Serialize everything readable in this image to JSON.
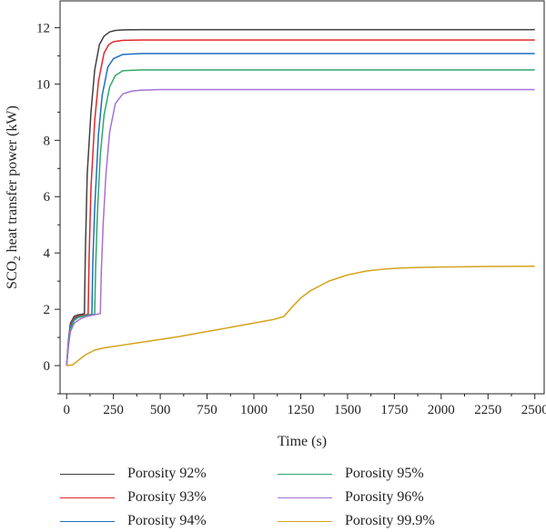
{
  "chart_data": {
    "type": "line",
    "xlabel": "Time (s)",
    "ylabel": {
      "prefix": "SCO",
      "sub": "2",
      "suffix": " heat transfer power (kW)"
    },
    "xlim": [
      -35,
      2550
    ],
    "ylim": [
      -1.0,
      12.95
    ],
    "x_ticks": [
      0,
      250,
      500,
      750,
      1000,
      1250,
      1500,
      1750,
      2000,
      2250,
      2500
    ],
    "x_tick_labels": [
      "0",
      "250",
      "500",
      "750",
      "1000",
      "1250",
      "1500",
      "1750",
      "2000",
      "2250",
      "2500"
    ],
    "y_ticks": [
      0,
      2,
      4,
      6,
      8,
      10,
      12
    ],
    "y_tick_labels": [
      "0",
      "2",
      "4",
      "6",
      "8",
      "10",
      "12"
    ],
    "grid": false,
    "legend_position": "bottom",
    "series": [
      {
        "name": "Porosity 92%",
        "color": "#404040",
        "x": [
          0,
          10,
          20,
          40,
          60,
          80,
          95,
          100,
          110,
          130,
          150,
          175,
          200,
          230,
          260,
          300,
          400,
          500,
          2500
        ],
        "y": [
          0,
          0.9,
          1.5,
          1.75,
          1.8,
          1.82,
          1.85,
          4.0,
          6.8,
          9.0,
          10.5,
          11.4,
          11.7,
          11.85,
          11.9,
          11.92,
          11.93,
          11.93,
          11.93
        ]
      },
      {
        "name": "Porosity 93%",
        "color": "#e0282a",
        "x": [
          0,
          10,
          20,
          40,
          60,
          80,
          100,
          115,
          120,
          130,
          150,
          170,
          200,
          225,
          250,
          300,
          400,
          500,
          2500
        ],
        "y": [
          0,
          0.85,
          1.45,
          1.7,
          1.75,
          1.78,
          1.8,
          1.82,
          3.8,
          6.3,
          8.7,
          10.1,
          11.1,
          11.4,
          11.5,
          11.55,
          11.56,
          11.56,
          11.56
        ]
      },
      {
        "name": "Porosity 94%",
        "color": "#1a6fc0",
        "x": [
          0,
          10,
          20,
          40,
          60,
          80,
          100,
          120,
          135,
          140,
          150,
          170,
          190,
          220,
          250,
          300,
          400,
          500,
          2500
        ],
        "y": [
          0,
          0.8,
          1.4,
          1.65,
          1.72,
          1.75,
          1.78,
          1.8,
          1.82,
          3.7,
          5.6,
          8.2,
          9.6,
          10.6,
          10.9,
          11.05,
          11.08,
          11.08,
          11.08
        ]
      },
      {
        "name": "Porosity 95%",
        "color": "#2fa86a",
        "x": [
          0,
          10,
          20,
          40,
          60,
          80,
          100,
          130,
          150,
          155,
          165,
          180,
          200,
          230,
          260,
          300,
          400,
          500,
          2500
        ],
        "y": [
          0,
          0.75,
          1.3,
          1.6,
          1.7,
          1.74,
          1.77,
          1.8,
          1.82,
          3.5,
          5.5,
          7.5,
          8.9,
          9.9,
          10.3,
          10.47,
          10.5,
          10.5,
          10.5
        ]
      },
      {
        "name": "Porosity 96%",
        "color": "#a472d4",
        "x": [
          0,
          10,
          20,
          40,
          60,
          80,
          100,
          130,
          160,
          180,
          185,
          195,
          210,
          230,
          260,
          300,
          350,
          400,
          500,
          2500
        ],
        "y": [
          0,
          0.7,
          1.2,
          1.5,
          1.6,
          1.68,
          1.73,
          1.78,
          1.82,
          1.85,
          3.3,
          5.0,
          6.8,
          8.3,
          9.3,
          9.65,
          9.75,
          9.78,
          9.8,
          9.8
        ]
      },
      {
        "name": "Porosity 99.9%",
        "color": "#d4a21a",
        "x": [
          0,
          30,
          50,
          80,
          100,
          150,
          200,
          300,
          400,
          500,
          600,
          700,
          800,
          900,
          1000,
          1100,
          1160,
          1200,
          1250,
          1300,
          1400,
          1500,
          1600,
          1700,
          1800,
          1900,
          2000,
          2250,
          2500
        ],
        "y": [
          0,
          0.02,
          0.12,
          0.28,
          0.38,
          0.55,
          0.63,
          0.73,
          0.83,
          0.93,
          1.03,
          1.15,
          1.27,
          1.39,
          1.51,
          1.63,
          1.74,
          2.05,
          2.4,
          2.65,
          3.0,
          3.22,
          3.36,
          3.43,
          3.47,
          3.49,
          3.5,
          3.52,
          3.53
        ]
      }
    ]
  }
}
